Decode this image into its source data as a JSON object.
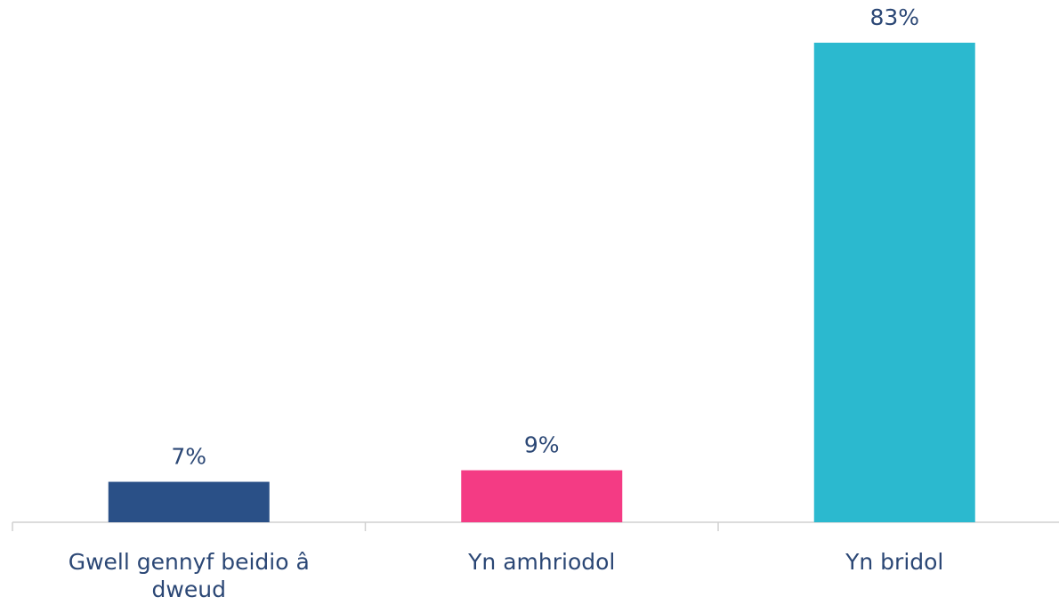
{
  "chart_data": {
    "type": "bar",
    "categories": [
      "Gwell gennyf beidio â dweud",
      "Yn amhriodol",
      "Yn bridol"
    ],
    "values": [
      7,
      9,
      83
    ],
    "value_labels": [
      "7%",
      "9%",
      "83%"
    ],
    "colors": [
      "#2a5087",
      "#f43b84",
      "#2bb9cf"
    ]
  }
}
